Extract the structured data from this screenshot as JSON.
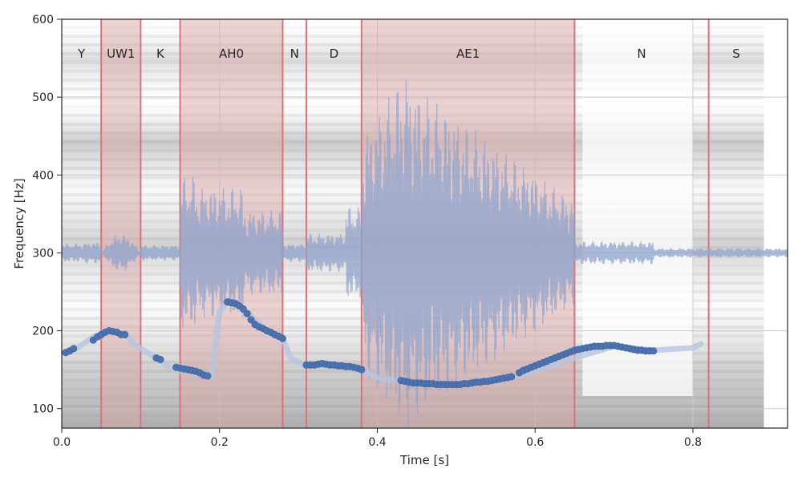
{
  "chart_data": {
    "type": "line",
    "xlabel": "Time [s]",
    "ylabel": "Frequency [Hz]",
    "xlim": [
      0.0,
      0.92
    ],
    "ylim": [
      75,
      600
    ],
    "x_ticks": [
      0.0,
      0.2,
      0.4,
      0.6,
      0.8
    ],
    "x_tick_labels": [
      "0.0",
      "0.2",
      "0.4",
      "0.6",
      "0.8"
    ],
    "y_ticks": [
      100,
      200,
      300,
      400,
      500,
      600
    ],
    "y_tick_labels": [
      "100",
      "200",
      "300",
      "400",
      "500",
      "600"
    ],
    "grid": true,
    "segments": [
      {
        "label": "Y",
        "start": 0.0,
        "end": 0.05
      },
      {
        "label": "UW1",
        "start": 0.05,
        "end": 0.1
      },
      {
        "label": "K",
        "start": 0.1,
        "end": 0.15
      },
      {
        "label": "AH0",
        "start": 0.15,
        "end": 0.28
      },
      {
        "label": "N",
        "start": 0.28,
        "end": 0.31
      },
      {
        "label": "D",
        "start": 0.31,
        "end": 0.38
      },
      {
        "label": "AE1",
        "start": 0.38,
        "end": 0.65
      },
      {
        "label": "N",
        "start": 0.65,
        "end": 0.82
      },
      {
        "label": "S",
        "start": 0.82,
        "end": 0.89
      }
    ],
    "shaded_segments": [
      "UW1",
      "AH0",
      "AE1"
    ],
    "boundary_lines": [
      0.05,
      0.1,
      0.15,
      0.28,
      0.31,
      0.38,
      0.65,
      0.82
    ],
    "pitch_contour": {
      "x": [
        0.005,
        0.02,
        0.04,
        0.06,
        0.08,
        0.095,
        0.12,
        0.14,
        0.16,
        0.18,
        0.19,
        0.2,
        0.21,
        0.23,
        0.25,
        0.265,
        0.28,
        0.29,
        0.31,
        0.33,
        0.35,
        0.37,
        0.38,
        0.4,
        0.45,
        0.5,
        0.55,
        0.6,
        0.62,
        0.65,
        0.7,
        0.75,
        0.8,
        0.81
      ],
      "y": [
        172,
        178,
        192,
        200,
        195,
        180,
        165,
        150,
        147,
        143,
        141,
        225,
        237,
        228,
        210,
        195,
        190,
        165,
        155,
        155,
        154,
        152,
        150,
        140,
        132,
        132,
        135,
        148,
        155,
        165,
        180,
        175,
        178,
        183
      ]
    },
    "pitch_points": {
      "x": [
        0.005,
        0.01,
        0.015,
        0.04,
        0.045,
        0.05,
        0.055,
        0.06,
        0.065,
        0.07,
        0.075,
        0.08,
        0.12,
        0.125,
        0.145,
        0.15,
        0.155,
        0.16,
        0.165,
        0.17,
        0.175,
        0.18,
        0.185,
        0.21,
        0.215,
        0.22,
        0.225,
        0.23,
        0.235,
        0.24,
        0.245,
        0.25,
        0.255,
        0.26,
        0.265,
        0.27,
        0.275,
        0.28,
        0.31,
        0.315,
        0.32,
        0.325,
        0.33,
        0.335,
        0.34,
        0.345,
        0.35,
        0.355,
        0.36,
        0.365,
        0.37,
        0.375,
        0.38,
        0.43,
        0.435,
        0.44,
        0.445,
        0.45,
        0.455,
        0.46,
        0.465,
        0.47,
        0.475,
        0.48,
        0.485,
        0.49,
        0.495,
        0.5,
        0.505,
        0.51,
        0.515,
        0.52,
        0.525,
        0.53,
        0.535,
        0.54,
        0.545,
        0.55,
        0.555,
        0.56,
        0.565,
        0.57,
        0.58,
        0.585,
        0.59,
        0.595,
        0.6,
        0.605,
        0.61,
        0.615,
        0.62,
        0.625,
        0.63,
        0.635,
        0.64,
        0.645,
        0.65,
        0.655,
        0.66,
        0.665,
        0.67,
        0.675,
        0.68,
        0.685,
        0.69,
        0.695,
        0.7,
        0.705,
        0.71,
        0.715,
        0.72,
        0.725,
        0.73,
        0.735,
        0.74,
        0.745,
        0.75
      ],
      "y": [
        172,
        174,
        177,
        188,
        192,
        195,
        198,
        200,
        199,
        198,
        195,
        195,
        165,
        163,
        153,
        152,
        151,
        150,
        149,
        148,
        146,
        143,
        142,
        237,
        236,
        235,
        232,
        228,
        222,
        214,
        208,
        205,
        203,
        200,
        198,
        195,
        193,
        190,
        156,
        156,
        156,
        157,
        158,
        157,
        156,
        156,
        155,
        155,
        154,
        154,
        153,
        152,
        150,
        136,
        135,
        134,
        133,
        133,
        133,
        132,
        132,
        132,
        131,
        131,
        131,
        131,
        131,
        131,
        131,
        132,
        132,
        133,
        134,
        134,
        135,
        135,
        136,
        137,
        138,
        139,
        140,
        141,
        146,
        149,
        151,
        153,
        155,
        157,
        159,
        161,
        163,
        165,
        167,
        169,
        171,
        173,
        175,
        176,
        177,
        178,
        179,
        180,
        180,
        180,
        181,
        181,
        181,
        180,
        179,
        178,
        177,
        176,
        175,
        175,
        174,
        174,
        174
      ]
    },
    "waveform": {
      "center": 300,
      "color": "#8fa3cc"
    }
  }
}
